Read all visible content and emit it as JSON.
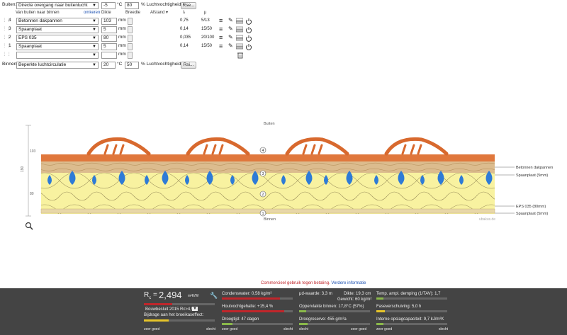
{
  "top": {
    "buiten_label": "Buiten:",
    "buiten_select": "Directe overgang naar buitenlucht",
    "buiten_temp": "-5",
    "buiten_temp_unit": "°C",
    "buiten_rh": "80",
    "buiten_rh_unit": "% Luchtvochtigheid",
    "buiten_button": "Rse..."
  },
  "headers": {
    "direction": "Van buiten naar binnen",
    "reverse": "omkeren",
    "thickness": "Dikte",
    "width": "Breedte",
    "distance": "Afstand",
    "lambda": "λ",
    "mu": "μ"
  },
  "layers": [
    {
      "num": "4",
      "material": "Betonnen dakpannen",
      "thickness": "103",
      "unit": "mm",
      "lambda": "0,75",
      "mu": "5/13"
    },
    {
      "num": "3",
      "material": "Spaanplaat",
      "thickness": "5",
      "unit": "mm",
      "lambda": "0,14",
      "mu": "15/50"
    },
    {
      "num": "2",
      "material": "EPS 035",
      "thickness": "80",
      "unit": "mm",
      "lambda": "0,035",
      "mu": "20/100"
    },
    {
      "num": "1",
      "material": "Spaanplaat",
      "thickness": "5",
      "unit": "mm",
      "lambda": "0,14",
      "mu": "15/50"
    },
    {
      "num": "",
      "material": "",
      "thickness": "",
      "unit": "mm",
      "lambda": "",
      "mu": ""
    }
  ],
  "bottom_row": {
    "binnen_label": "Binnen:",
    "binnen_select": "Beperkte luchtcirculatie",
    "binnen_temp": "20",
    "binnen_temp_unit": "°C",
    "binnen_rh": "50",
    "binnen_rh_unit": "% Luchtvochtigheid",
    "binnen_button": "Rsi..."
  },
  "diagram": {
    "buiten": "Buiten",
    "binnen": "Binnen",
    "left_scale": [
      "103",
      "190",
      "80"
    ],
    "layer_markers": [
      "4",
      "3",
      "2",
      "1"
    ],
    "right_labels": [
      "Betonnen dakpannen",
      "Spaanplaat (5mm)",
      "EPS 035 (80mm)",
      "Spaanplaat (5mm)"
    ],
    "watermark": "ubakus.de"
  },
  "notice": {
    "text": "Commercieel gebruik tegen betaling.",
    "link": "Verdere informatie"
  },
  "results": {
    "rc_label": "R",
    "rc_sub": "c",
    "rc_eq": "=",
    "rc_value": "2,494",
    "rc_unit": "m²K/W",
    "norm": "Bouwbesluit 2015 Rc>4,5",
    "norm_arrow": "▼",
    "greenhouse": "Bijdrage aan het broeikaseffect:",
    "zeer_goed": "zeer goed",
    "slecht": "slecht",
    "condens": "Condenswater: 0,58 kg/m²",
    "houtvocht": "Houtvochtgehalte: +15,4 %",
    "droogtijd": "Droogtijd: 47 dagen",
    "sd": "μd-waarde: 3,3 m",
    "dikte": "Dikte: 19,3 cm",
    "gewicht": "Gewicht: 60 kg/m²",
    "oppervlak": "Oppervlakte binnen: 17,8°C (57%)",
    "droogreserve": "Droogreserve: 455 g/m²a",
    "tav": "Temp. ampl. demping (1/TAV): 1,7",
    "fase": "Faseverschuiving: 5,0 h",
    "opslag": "Interne opslagcapaciteit: 9,7 kJ/m²K"
  },
  "colors": {
    "tile": "#e0773c",
    "wood": "#d9b98a",
    "insulation": "#f7f19a",
    "drop": "#2e7bd6",
    "bottom_bg": "#444444",
    "bar_red": "#c0262b",
    "bar_yellow": "#e6c42a",
    "bar_green": "#8ab84a"
  },
  "levels": {
    "greenhouse": 0.35,
    "condens": 0.82,
    "houtvocht": 0.88,
    "droogtijd": 0.15,
    "oppervlak": 0.1,
    "droogreserve": 0.12,
    "tav": 0.1,
    "fase": 0.12,
    "opslag": 0.1
  }
}
